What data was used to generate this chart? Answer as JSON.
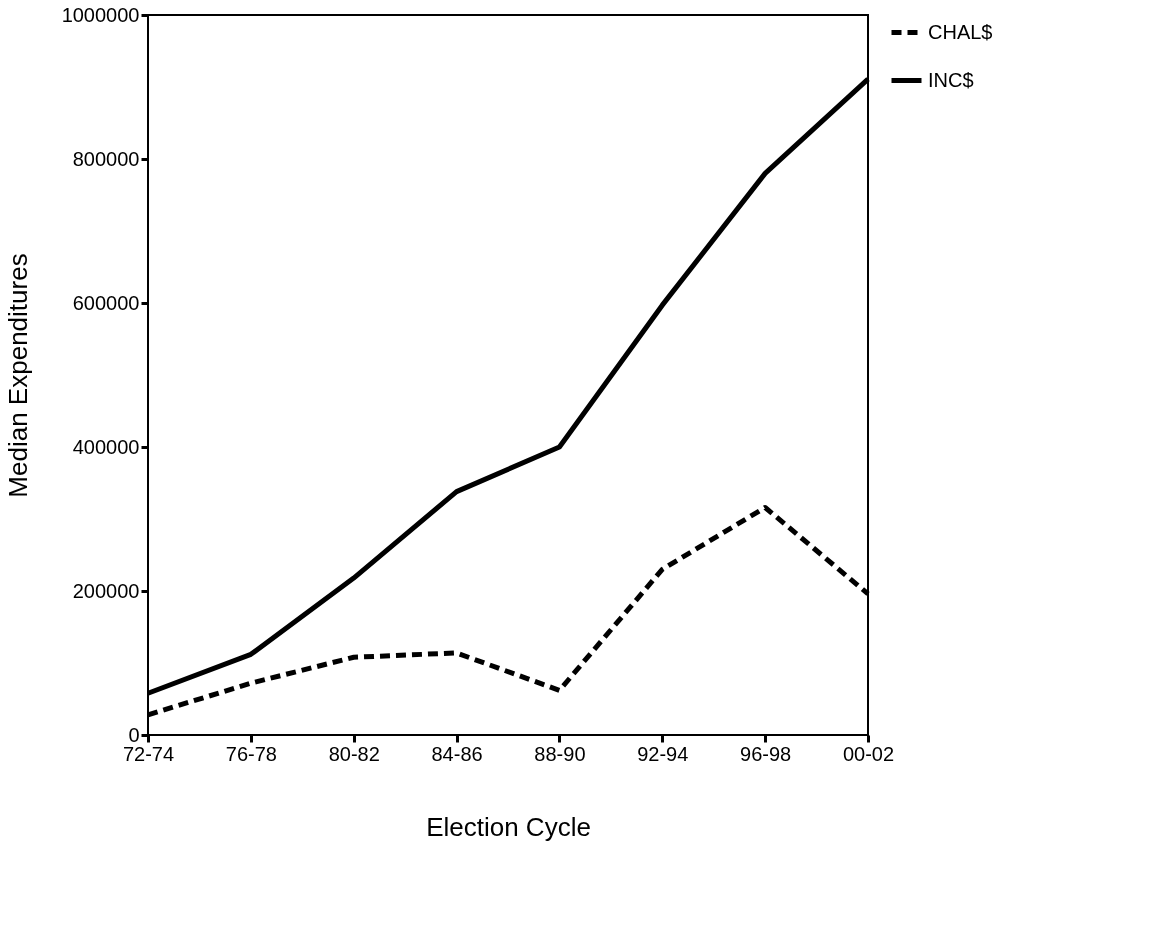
{
  "chart_data": {
    "type": "line",
    "xlabel": "Election Cycle",
    "ylabel": "Median Expenditures",
    "categories": [
      "72-74",
      "76-78",
      "80-82",
      "84-86",
      "88-90",
      "92-94",
      "96-98",
      "00-02"
    ],
    "series": [
      {
        "name": "CHAL$",
        "color": "#000000",
        "line_style": "dashed",
        "values": [
          28000,
          72000,
          108000,
          114000,
          62000,
          230000,
          316000,
          196000
        ]
      },
      {
        "name": "INC$",
        "color": "#000000",
        "line_style": "solid",
        "values": [
          58000,
          112000,
          218000,
          338000,
          400000,
          597000,
          780000,
          911000
        ]
      }
    ],
    "ylim": [
      0,
      1000000
    ],
    "yticks": [
      0,
      200000,
      400000,
      600000,
      800000,
      1000000
    ],
    "grid": false,
    "legend": "right",
    "marker": "none"
  }
}
